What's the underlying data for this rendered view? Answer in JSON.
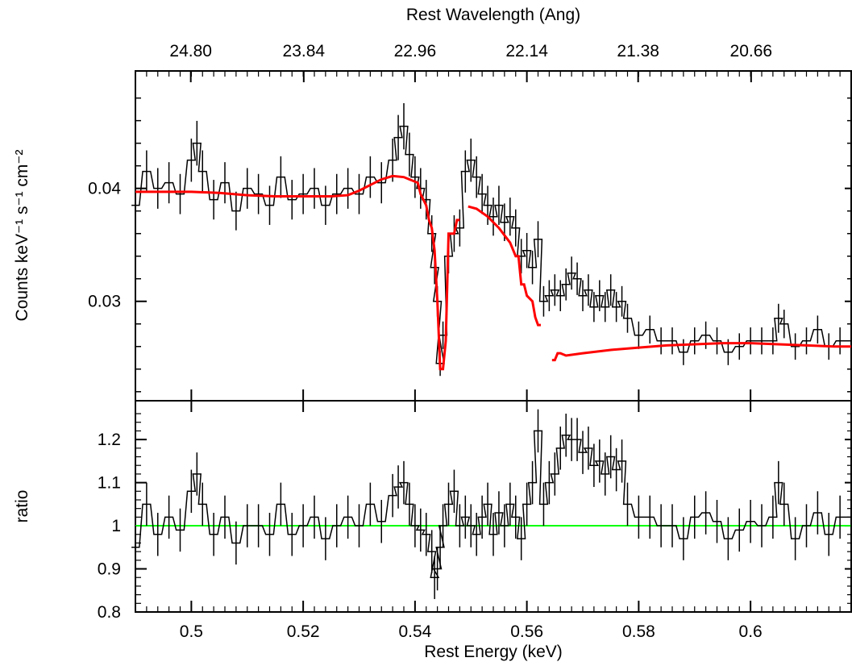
{
  "chart_data": [
    {
      "type": "line",
      "panel": "top",
      "xlabel_top": "Rest Wavelength (Ang)",
      "ylabel": "Counts keV⁻¹ s⁻¹ cm⁻²",
      "xlim": [
        0.49,
        0.618
      ],
      "ylim": [
        0.0212,
        0.0504
      ],
      "yticks": [
        0.03,
        0.04
      ],
      "ytick_labels": [
        "0.03",
        "0.04"
      ],
      "top_axis_ticks": [
        {
          "value": 0.4999,
          "label": "24.80"
        },
        {
          "value": 0.5201,
          "label": "23.84"
        },
        {
          "value": 0.54,
          "label": "22.96"
        },
        {
          "value": 0.56,
          "label": "22.14"
        },
        {
          "value": 0.5799,
          "label": "21.38"
        },
        {
          "value": 0.6001,
          "label": "20.66"
        }
      ],
      "series": [
        {
          "role": "data",
          "color": "#000000",
          "x": [
            0.49,
            0.492,
            0.494,
            0.496,
            0.498,
            0.5,
            0.501,
            0.502,
            0.504,
            0.506,
            0.508,
            0.51,
            0.512,
            0.514,
            0.516,
            0.518,
            0.52,
            0.522,
            0.524,
            0.526,
            0.528,
            0.53,
            0.532,
            0.534,
            0.536,
            0.537,
            0.538,
            0.539,
            0.54,
            0.541,
            0.542,
            0.543,
            0.5435,
            0.544,
            0.5445,
            0.545,
            0.546,
            0.547,
            0.548,
            0.549,
            0.55,
            0.551,
            0.552,
            0.553,
            0.554,
            0.555,
            0.556,
            0.557,
            0.558,
            0.559,
            0.56,
            0.561,
            0.562,
            0.563,
            0.564,
            0.565,
            0.566,
            0.567,
            0.568,
            0.569,
            0.57,
            0.571,
            0.572,
            0.573,
            0.574,
            0.575,
            0.576,
            0.577,
            0.578,
            0.58,
            0.582,
            0.584,
            0.586,
            0.588,
            0.59,
            0.592,
            0.594,
            0.596,
            0.598,
            0.6,
            0.602,
            0.604,
            0.605,
            0.606,
            0.608,
            0.61,
            0.612,
            0.614,
            0.616,
            0.618
          ],
          "y": [
            0.0385,
            0.0415,
            0.04,
            0.0405,
            0.0395,
            0.0425,
            0.044,
            0.0415,
            0.039,
            0.0405,
            0.038,
            0.04,
            0.0395,
            0.0385,
            0.041,
            0.039,
            0.0395,
            0.04,
            0.0385,
            0.0395,
            0.04,
            0.0395,
            0.041,
            0.0405,
            0.0425,
            0.0445,
            0.0455,
            0.043,
            0.041,
            0.04,
            0.039,
            0.036,
            0.033,
            0.03,
            0.0245,
            0.027,
            0.034,
            0.036,
            0.0365,
            0.0415,
            0.0425,
            0.041,
            0.0395,
            0.0385,
            0.0375,
            0.0385,
            0.037,
            0.0375,
            0.0365,
            0.034,
            0.0345,
            0.033,
            0.0355,
            0.03,
            0.0305,
            0.031,
            0.0305,
            0.0315,
            0.0325,
            0.032,
            0.0305,
            0.031,
            0.0295,
            0.0305,
            0.0295,
            0.031,
            0.0295,
            0.03,
            0.0285,
            0.027,
            0.0275,
            0.0265,
            0.0265,
            0.0255,
            0.0265,
            0.027,
            0.0265,
            0.0255,
            0.026,
            0.0265,
            0.0265,
            0.0265,
            0.0285,
            0.028,
            0.026,
            0.0265,
            0.0275,
            0.026,
            0.0265,
            0.0265
          ]
        },
        {
          "role": "model",
          "color": "#ff0000",
          "segments": [
            {
              "x": [
                0.49,
                0.495,
                0.5,
                0.505,
                0.51,
                0.515,
                0.52,
                0.525,
                0.528,
                0.53,
                0.532,
                0.534,
                0.536,
                0.538,
                0.539,
                0.5405,
                0.541,
                0.542,
                0.5425,
                0.543,
                0.5435,
                0.544,
                0.5445,
                0.545,
                0.5455,
                0.546,
                0.547,
                0.5475,
                0.548
              ],
              "y": [
                0.0397,
                0.0397,
                0.0397,
                0.0396,
                0.0394,
                0.0393,
                0.0393,
                0.0393,
                0.0394,
                0.0398,
                0.0403,
                0.0408,
                0.0411,
                0.041,
                0.0408,
                0.0405,
                0.0395,
                0.0385,
                0.0372,
                0.0365,
                0.0345,
                0.03,
                0.024,
                0.024,
                0.0265,
                0.036,
                0.036,
                0.0372,
                0.0372
              ]
            },
            {
              "x": [
                0.5495,
                0.551,
                0.553,
                0.555,
                0.557,
                0.558,
                0.5585,
                0.559,
                0.5595,
                0.56,
                0.561,
                0.5615,
                0.562,
                0.5625
              ],
              "y": [
                0.0384,
                0.0382,
                0.0375,
                0.0365,
                0.0352,
                0.034,
                0.034,
                0.0315,
                0.0315,
                0.0305,
                0.03,
                0.0286,
                0.0279,
                0.0279
              ]
            },
            {
              "x": [
                0.5645,
                0.565,
                0.5655,
                0.566,
                0.567,
                0.57,
                0.575,
                0.58,
                0.585,
                0.59,
                0.595,
                0.6,
                0.605,
                0.61,
                0.615,
                0.618
              ],
              "y": [
                0.0248,
                0.0248,
                0.0254,
                0.0254,
                0.0252,
                0.0254,
                0.0257,
                0.0259,
                0.0261,
                0.0262,
                0.0263,
                0.0263,
                0.0262,
                0.0261,
                0.026,
                0.026
              ]
            }
          ]
        }
      ]
    },
    {
      "type": "line",
      "panel": "bottom",
      "xlabel": "Rest Energy (keV)",
      "ylabel": "ratio",
      "xlim": [
        0.49,
        0.618
      ],
      "ylim": [
        0.8,
        1.29
      ],
      "xticks": [
        0.5,
        0.52,
        0.54,
        0.56,
        0.58,
        0.6
      ],
      "xtick_labels": [
        "0.5",
        "0.52",
        "0.54",
        "0.56",
        "0.58",
        "0.6"
      ],
      "yticks": [
        0.8,
        0.9,
        1.0,
        1.1,
        1.2
      ],
      "ytick_labels": [
        "0.8",
        "0.9",
        "1",
        "1.1",
        "1.2"
      ],
      "series": [
        {
          "role": "ratio",
          "color": "#000000",
          "x": [
            0.49,
            0.492,
            0.494,
            0.496,
            0.498,
            0.5,
            0.501,
            0.502,
            0.504,
            0.506,
            0.508,
            0.51,
            0.512,
            0.514,
            0.516,
            0.518,
            0.52,
            0.522,
            0.524,
            0.526,
            0.528,
            0.53,
            0.532,
            0.534,
            0.536,
            0.537,
            0.538,
            0.539,
            0.54,
            0.541,
            0.542,
            0.543,
            0.5435,
            0.544,
            0.5445,
            0.545,
            0.546,
            0.547,
            0.548,
            0.549,
            0.55,
            0.551,
            0.552,
            0.553,
            0.554,
            0.555,
            0.556,
            0.557,
            0.558,
            0.559,
            0.56,
            0.561,
            0.562,
            0.563,
            0.564,
            0.565,
            0.566,
            0.567,
            0.568,
            0.569,
            0.57,
            0.571,
            0.572,
            0.573,
            0.574,
            0.575,
            0.576,
            0.577,
            0.578,
            0.58,
            0.582,
            0.584,
            0.586,
            0.588,
            0.59,
            0.592,
            0.594,
            0.596,
            0.598,
            0.6,
            0.602,
            0.604,
            0.605,
            0.606,
            0.608,
            0.61,
            0.612,
            0.614,
            0.616,
            0.618
          ],
          "y": [
            0.95,
            1.05,
            0.98,
            1.02,
            0.99,
            1.08,
            1.12,
            1.05,
            0.98,
            1.02,
            0.96,
            1.0,
            1.0,
            0.98,
            1.05,
            0.98,
            1.0,
            1.02,
            0.97,
            1.0,
            1.02,
            1.0,
            1.05,
            1.01,
            1.07,
            1.09,
            1.1,
            1.05,
            1.0,
            0.99,
            0.98,
            0.94,
            0.88,
            0.9,
            0.95,
            1.0,
            1.05,
            1.08,
            1.0,
            1.02,
            1.0,
            0.98,
            1.02,
            1.05,
            0.98,
            1.03,
            1.0,
            1.05,
            1.02,
            0.97,
            1.05,
            1.1,
            1.22,
            1.05,
            1.1,
            1.12,
            1.18,
            1.21,
            1.2,
            1.2,
            1.17,
            1.18,
            1.14,
            1.15,
            1.12,
            1.16,
            1.13,
            1.15,
            1.05,
            1.02,
            1.02,
            1.0,
            1.0,
            0.97,
            1.02,
            1.03,
            1.01,
            0.97,
            0.99,
            1.01,
            1.0,
            1.02,
            1.1,
            1.05,
            0.97,
            1.0,
            1.03,
            0.98,
            1.02,
            1.02
          ]
        },
        {
          "role": "unity",
          "color": "#00ff00",
          "x": [
            0.49,
            0.618
          ],
          "y": [
            1,
            1
          ]
        }
      ]
    }
  ]
}
